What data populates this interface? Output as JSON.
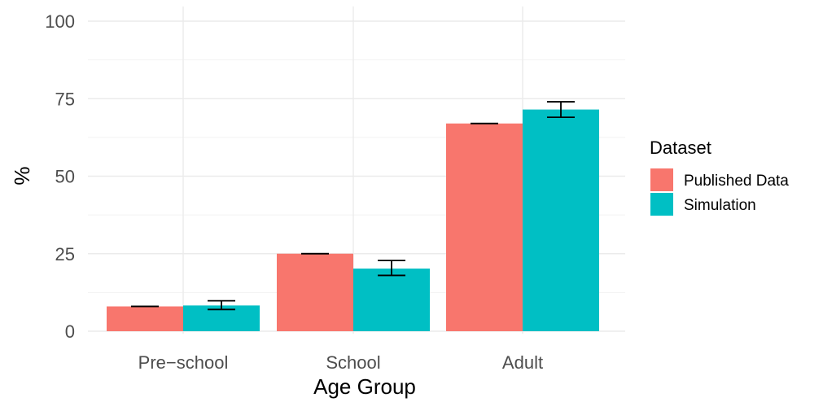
{
  "chart_data": {
    "type": "bar",
    "categories": [
      "Pre−school",
      "School",
      "Adult"
    ],
    "series": [
      {
        "name": "Published Data",
        "color": "#F8766D",
        "values": [
          8,
          25,
          67
        ],
        "error_low": [
          8,
          25,
          67
        ],
        "error_high": [
          8,
          25,
          67
        ]
      },
      {
        "name": "Simulation",
        "color": "#00BFC4",
        "values": [
          8.3,
          20.2,
          71.5
        ],
        "error_low": [
          7,
          18,
          69
        ],
        "error_high": [
          9.8,
          22.8,
          74
        ]
      }
    ],
    "xlabel": "Age Group",
    "ylabel": "%",
    "ylim": [
      0,
      100
    ],
    "yticks": [
      0,
      25,
      50,
      75,
      100
    ],
    "grid": true,
    "legend": {
      "title": "Dataset",
      "position": "right"
    }
  }
}
